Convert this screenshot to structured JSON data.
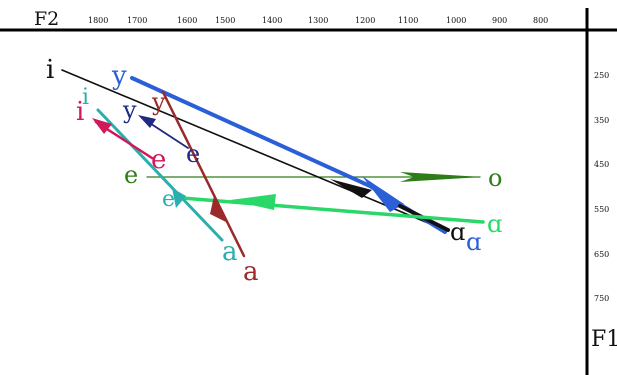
{
  "axes": {
    "f2_label": "F2",
    "f1_label": "F1",
    "f2_ticks": [
      "1800",
      "1700",
      "1600",
      "1500",
      "1400",
      "1300",
      "1200",
      "1100",
      "1000",
      "900",
      "800"
    ],
    "f1_ticks": [
      "250",
      "350",
      "450",
      "550",
      "650",
      "750"
    ]
  },
  "colors": {
    "black": "#111111",
    "blue": "#2a5fd8",
    "navy": "#1f2a80",
    "maroon": "#9a2a2a",
    "crimson": "#d2185a",
    "teal": "#2aaeae",
    "green": "#2e7d1a",
    "lightgreen": "#2ad86a"
  },
  "vowel_labels": {
    "i_black": "i",
    "y_blue": "y",
    "y_navy": "y",
    "y_maroon": "y",
    "i_crimson": "i",
    "i_teal": "i",
    "e_crimson": "e",
    "e_navy": "e",
    "e_green": "e",
    "e_teal": "e",
    "o_green": "o",
    "a_black": "ɑ",
    "a_blue": "ɑ",
    "a_lightgreen": "ɑ",
    "a_teal": "a",
    "a_maroon": "a"
  }
}
